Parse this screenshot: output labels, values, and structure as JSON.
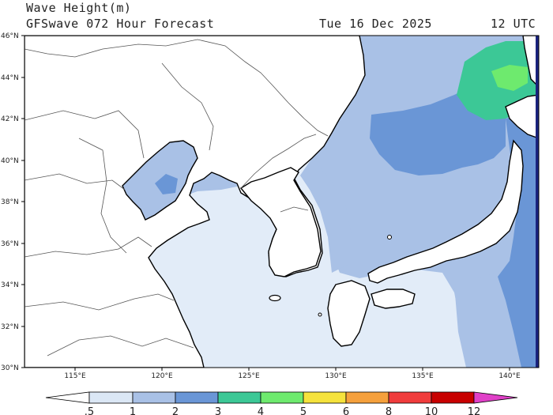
{
  "header": {
    "title": "Wave Height(m)",
    "subtitle": "GFSwave 072 Hour Forecast",
    "date": "Tue 16 Dec 2025",
    "time": "12 UTC"
  },
  "axes": {
    "lat_labels": [
      "46°N",
      "44°N",
      "42°N",
      "40°N",
      "38°N",
      "36°N",
      "34°N",
      "32°N",
      "30°N"
    ],
    "lon_labels": [
      "115°E",
      "120°E",
      "125°E",
      "130°E",
      "135°E",
      "140°E"
    ]
  },
  "colorbar": {
    "labels": [
      ".5",
      "1",
      "2",
      "3",
      "4",
      "5",
      "6",
      "8",
      "10",
      "12"
    ],
    "colors": [
      "#ffffff",
      "#dbe7f5",
      "#a9c1e6",
      "#6a96d6",
      "#3cc896",
      "#6eea6e",
      "#f5e23c",
      "#f5a03c",
      "#f03c3c",
      "#c80000",
      "#e040c8"
    ]
  },
  "colors": {
    "land": "#ffffff",
    "coast": "#000000",
    "border": "#555555",
    "calm": "#e2ecf8",
    "moderate": "#a9c1e6",
    "rough": "#6a96d6",
    "high": "#3cc896",
    "very_high": "#6eea6e",
    "edge": "#1a237e"
  }
}
